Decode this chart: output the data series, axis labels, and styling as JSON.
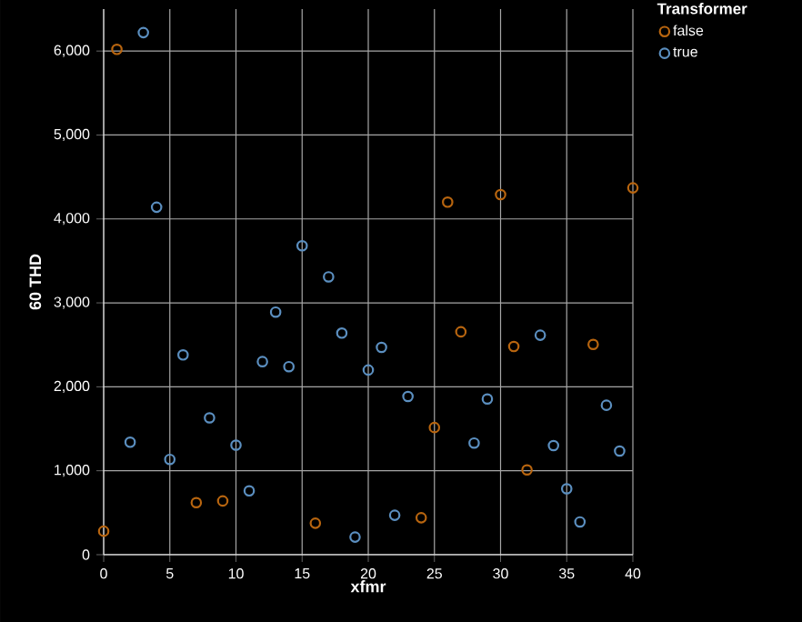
{
  "chart_data": {
    "type": "scatter",
    "xlabel": "xfmr",
    "ylabel": "60 THD",
    "legend_title": "Transformer",
    "xlim": [
      0,
      40
    ],
    "xticks": [
      0,
      5,
      10,
      15,
      20,
      25,
      30,
      35,
      40
    ],
    "ylim": [
      0,
      6500
    ],
    "yticks": [
      {
        "value": 0,
        "label": "0"
      },
      {
        "value": 1000,
        "label": "1,000"
      },
      {
        "value": 2000,
        "label": "2,000"
      },
      {
        "value": 3000,
        "label": "3,000"
      },
      {
        "value": 4000,
        "label": "4,000"
      },
      {
        "value": 5000,
        "label": "5,000"
      },
      {
        "value": 6000,
        "label": "6,000"
      }
    ],
    "grid": true,
    "legend": "top right",
    "marker": "circle",
    "series": [
      {
        "name": "false",
        "color": "#b8650f",
        "x": [
          0,
          1,
          7,
          9,
          16,
          24,
          25,
          26,
          27,
          30,
          31,
          32,
          37,
          40
        ],
        "values": [
          280,
          6020,
          620,
          640,
          375,
          440,
          1515,
          4200,
          2655,
          4290,
          2480,
          1010,
          2505,
          4370
        ]
      },
      {
        "name": "true",
        "color": "#5b8fc0",
        "x": [
          2,
          3,
          4,
          5,
          6,
          8,
          10,
          11,
          12,
          13,
          14,
          15,
          17,
          18,
          19,
          20,
          21,
          22,
          23,
          28,
          29,
          33,
          34,
          35,
          36,
          38,
          39
        ],
        "values": [
          1340,
          6220,
          4140,
          1135,
          2380,
          1630,
          1305,
          760,
          2300,
          2890,
          2240,
          3680,
          3310,
          2640,
          210,
          2200,
          2470,
          470,
          1885,
          1330,
          1855,
          2615,
          1300,
          785,
          390,
          1780,
          1235
        ]
      }
    ]
  }
}
